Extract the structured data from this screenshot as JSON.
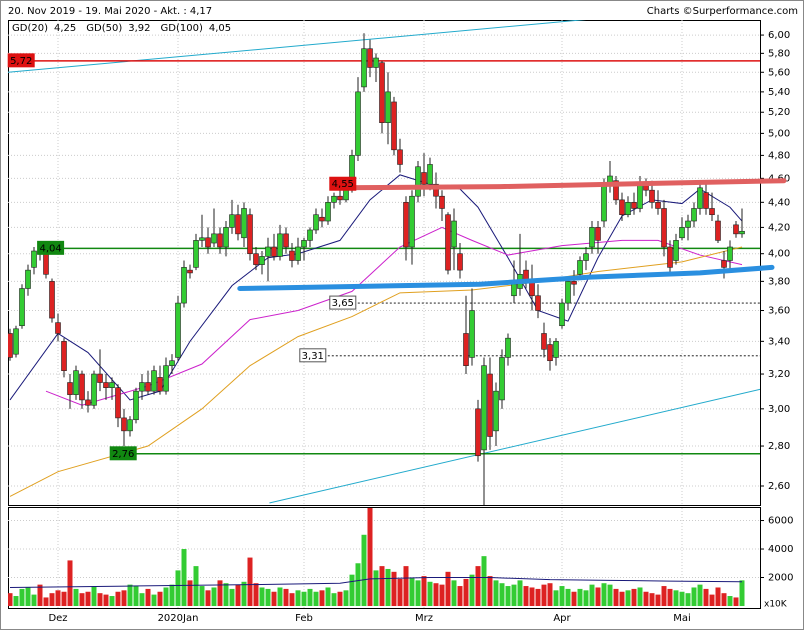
{
  "chart_data": {
    "type": "candlestick",
    "title": "20. Nov 2019 - 19. Mai 2020 - Akt. : 4,17",
    "source": "Charts ©Surperformance.com",
    "log": true,
    "grid": true,
    "up_color": "#33cc33",
    "down_color": "#dd2222",
    "categories": [
      null,
      null,
      null,
      null,
      null,
      null,
      null,
      null,
      "Dez",
      null,
      null,
      null,
      null,
      null,
      null,
      null,
      null,
      null,
      null,
      null,
      null,
      null,
      null,
      null,
      null,
      null,
      null,
      null,
      "2020Jan",
      null,
      null,
      null,
      null,
      null,
      null,
      null,
      null,
      null,
      null,
      null,
      null,
      null,
      null,
      null,
      null,
      null,
      null,
      null,
      null,
      "Feb",
      null,
      null,
      null,
      null,
      null,
      null,
      null,
      null,
      null,
      null,
      null,
      null,
      null,
      null,
      null,
      null,
      null,
      null,
      null,
      "Mrz",
      null,
      null,
      null,
      null,
      null,
      null,
      null,
      null,
      null,
      null,
      null,
      null,
      null,
      null,
      null,
      null,
      null,
      null,
      null,
      null,
      null,
      null,
      "Apr",
      null,
      null,
      null,
      null,
      null,
      null,
      null,
      null,
      null,
      null,
      null,
      null,
      null,
      null,
      null,
      null,
      null,
      null,
      null,
      "Mai",
      null,
      null,
      null,
      null,
      null,
      null,
      null,
      null,
      null,
      null,
      null
    ],
    "candles": [
      [
        3.45,
        3.48,
        3.28,
        3.3
      ],
      [
        3.32,
        3.5,
        3.3,
        3.48
      ],
      [
        3.5,
        3.78,
        3.48,
        3.75
      ],
      [
        3.75,
        3.92,
        3.7,
        3.88
      ],
      [
        3.9,
        4.05,
        3.85,
        4.02
      ],
      [
        4.02,
        4.06,
        3.95,
        4.0
      ],
      [
        4.0,
        4.02,
        3.82,
        3.85
      ],
      [
        3.8,
        3.82,
        3.52,
        3.55
      ],
      [
        3.52,
        3.58,
        3.4,
        3.45
      ],
      [
        3.4,
        3.42,
        3.18,
        3.22
      ],
      [
        3.15,
        3.2,
        3.0,
        3.08
      ],
      [
        3.08,
        3.25,
        3.05,
        3.22
      ],
      [
        3.2,
        3.22,
        3.0,
        3.05
      ],
      [
        3.05,
        3.1,
        2.98,
        3.02
      ],
      [
        3.02,
        3.22,
        3.0,
        3.2
      ],
      [
        3.2,
        3.35,
        3.1,
        3.15
      ],
      [
        3.15,
        3.2,
        3.05,
        3.12
      ],
      [
        3.12,
        3.18,
        3.05,
        3.15
      ],
      [
        3.12,
        3.14,
        2.9,
        2.95
      ],
      [
        2.95,
        3.0,
        2.8,
        2.88
      ],
      [
        2.88,
        2.96,
        2.85,
        2.94
      ],
      [
        2.94,
        3.12,
        2.92,
        3.1
      ],
      [
        3.1,
        3.2,
        3.05,
        3.15
      ],
      [
        3.15,
        3.22,
        3.08,
        3.1
      ],
      [
        3.1,
        3.25,
        3.08,
        3.22
      ],
      [
        3.18,
        3.25,
        3.08,
        3.1
      ],
      [
        3.1,
        3.3,
        3.08,
        3.25
      ],
      [
        3.25,
        3.32,
        3.2,
        3.28
      ],
      [
        3.3,
        3.7,
        3.28,
        3.65
      ],
      [
        3.65,
        3.95,
        3.62,
        3.9
      ],
      [
        3.88,
        3.92,
        3.82,
        3.86
      ],
      [
        3.9,
        4.15,
        3.88,
        4.1
      ],
      [
        4.1,
        4.3,
        4.05,
        4.12
      ],
      [
        4.12,
        4.2,
        4.0,
        4.05
      ],
      [
        4.08,
        4.35,
        4.05,
        4.15
      ],
      [
        4.15,
        4.2,
        4.0,
        4.05
      ],
      [
        4.05,
        4.25,
        3.98,
        4.2
      ],
      [
        4.2,
        4.42,
        4.15,
        4.3
      ],
      [
        4.3,
        4.38,
        4.1,
        4.15
      ],
      [
        4.12,
        4.4,
        4.05,
        4.35
      ],
      [
        4.3,
        4.35,
        3.95,
        4.0
      ],
      [
        4.0,
        4.05,
        3.88,
        3.92
      ],
      [
        3.92,
        4.02,
        3.85,
        3.98
      ],
      [
        3.98,
        4.12,
        3.8,
        4.05
      ],
      [
        4.05,
        4.15,
        3.95,
        3.98
      ],
      [
        3.98,
        4.22,
        3.95,
        4.15
      ],
      [
        4.15,
        4.2,
        4.0,
        4.05
      ],
      [
        4.02,
        4.08,
        3.9,
        3.95
      ],
      [
        3.95,
        4.12,
        3.92,
        4.05
      ],
      [
        4.05,
        4.12,
        3.95,
        4.1
      ],
      [
        4.1,
        4.2,
        4.05,
        4.18
      ],
      [
        4.18,
        4.35,
        4.15,
        4.3
      ],
      [
        4.28,
        4.35,
        4.2,
        4.25
      ],
      [
        4.25,
        4.45,
        4.22,
        4.4
      ],
      [
        4.4,
        4.48,
        4.35,
        4.45
      ],
      [
        4.45,
        4.55,
        4.38,
        4.42
      ],
      [
        4.42,
        4.58,
        4.4,
        4.5
      ],
      [
        4.5,
        4.85,
        4.48,
        4.8
      ],
      [
        4.8,
        5.55,
        4.75,
        5.4
      ],
      [
        5.45,
        6.02,
        5.4,
        5.85
      ],
      [
        5.85,
        5.95,
        5.55,
        5.65
      ],
      [
        5.65,
        5.8,
        5.5,
        5.75
      ],
      [
        5.7,
        5.72,
        5.0,
        5.1
      ],
      [
        5.1,
        5.6,
        4.9,
        5.4
      ],
      [
        5.3,
        5.35,
        4.8,
        4.85
      ],
      [
        4.85,
        4.95,
        4.65,
        4.72
      ],
      [
        4.4,
        4.45,
        3.95,
        4.05
      ],
      [
        4.05,
        4.5,
        3.92,
        4.45
      ],
      [
        4.45,
        4.75,
        4.4,
        4.7
      ],
      [
        4.65,
        4.82,
        4.45,
        4.55
      ],
      [
        4.55,
        4.78,
        4.5,
        4.72
      ],
      [
        4.55,
        4.65,
        4.35,
        4.45
      ],
      [
        4.45,
        4.5,
        4.25,
        4.35
      ],
      [
        4.3,
        4.32,
        3.85,
        3.88
      ],
      [
        4.05,
        4.35,
        3.88,
        4.25
      ],
      [
        4.0,
        4.08,
        3.82,
        3.88
      ],
      [
        3.45,
        3.7,
        3.2,
        3.25
      ],
      [
        3.3,
        3.75,
        3.25,
        3.6
      ],
      [
        3.0,
        3.05,
        2.72,
        2.75
      ],
      [
        2.78,
        3.3,
        2.5,
        3.25
      ],
      [
        3.2,
        3.3,
        2.78,
        2.85
      ],
      [
        2.88,
        3.15,
        2.8,
        3.1
      ],
      [
        3.05,
        3.35,
        3.0,
        3.3
      ],
      [
        3.3,
        3.45,
        3.25,
        3.42
      ],
      [
        3.7,
        3.95,
        3.65,
        3.78
      ],
      [
        3.75,
        4.15,
        3.7,
        3.85
      ],
      [
        3.88,
        3.95,
        3.75,
        3.8
      ],
      [
        3.8,
        3.92,
        3.6,
        3.7
      ],
      [
        3.7,
        3.78,
        3.55,
        3.6
      ],
      [
        3.45,
        3.52,
        3.3,
        3.35
      ],
      [
        3.38,
        3.42,
        3.22,
        3.28
      ],
      [
        3.3,
        3.42,
        3.25,
        3.4
      ],
      [
        3.5,
        3.68,
        3.48,
        3.65
      ],
      [
        3.65,
        3.82,
        3.6,
        3.8
      ],
      [
        3.8,
        3.88,
        3.7,
        3.78
      ],
      [
        3.85,
        3.98,
        3.82,
        3.95
      ],
      [
        3.95,
        4.05,
        3.88,
        4.0
      ],
      [
        4.05,
        4.25,
        4.0,
        4.2
      ],
      [
        4.2,
        4.25,
        4.0,
        4.1
      ],
      [
        4.25,
        4.6,
        4.2,
        4.55
      ],
      [
        4.55,
        4.75,
        4.48,
        4.62
      ],
      [
        4.58,
        4.62,
        4.38,
        4.42
      ],
      [
        4.42,
        4.48,
        4.25,
        4.3
      ],
      [
        4.3,
        4.45,
        4.28,
        4.4
      ],
      [
        4.4,
        4.48,
        4.3,
        4.35
      ],
      [
        4.35,
        4.62,
        4.32,
        4.55
      ],
      [
        4.55,
        4.6,
        4.45,
        4.5
      ],
      [
        4.5,
        4.58,
        4.35,
        4.4
      ],
      [
        4.4,
        4.5,
        4.3,
        4.35
      ],
      [
        4.35,
        4.42,
        3.98,
        4.05
      ],
      [
        4.05,
        4.1,
        3.85,
        3.9
      ],
      [
        3.95,
        4.15,
        3.92,
        4.1
      ],
      [
        4.12,
        4.28,
        4.1,
        4.2
      ],
      [
        4.2,
        4.3,
        4.1,
        4.25
      ],
      [
        4.25,
        4.4,
        4.2,
        4.35
      ],
      [
        4.35,
        4.58,
        4.3,
        4.52
      ],
      [
        4.48,
        4.55,
        4.3,
        4.35
      ],
      [
        4.35,
        4.48,
        4.25,
        4.3
      ],
      [
        4.25,
        4.3,
        4.08,
        4.1
      ],
      [
        3.95,
        4.02,
        3.82,
        3.9
      ],
      [
        3.95,
        4.1,
        3.88,
        4.05
      ],
      [
        4.22,
        4.25,
        4.12,
        4.15
      ],
      [
        4.15,
        4.35,
        4.12,
        4.17
      ]
    ],
    "ylim": [
      2.51,
      6.17
    ],
    "yticks": [
      {
        "value": 2.6,
        "label": "2,60"
      },
      {
        "value": 2.8,
        "label": "2,80"
      },
      {
        "value": 3.0,
        "label": "3,00"
      },
      {
        "value": 3.2,
        "label": "3,20"
      },
      {
        "value": 3.4,
        "label": "3,40"
      },
      {
        "value": 3.6,
        "label": "3,60"
      },
      {
        "value": 3.8,
        "label": "3,80"
      },
      {
        "value": 4.0,
        "label": "4,00"
      },
      {
        "value": 4.2,
        "label": "4,20"
      },
      {
        "value": 4.4,
        "label": "4,40"
      },
      {
        "value": 4.6,
        "label": "4,60"
      },
      {
        "value": 4.8,
        "label": "4,80"
      },
      {
        "value": 5.0,
        "label": "5,00"
      },
      {
        "value": 5.2,
        "label": "5,20"
      },
      {
        "value": 5.4,
        "label": "5,40"
      },
      {
        "value": 5.6,
        "label": "5,60"
      },
      {
        "value": 5.8,
        "label": "5,80"
      },
      {
        "value": 6.0,
        "label": "6,00"
      }
    ],
    "averages": [
      {
        "name": "GD(20)",
        "color": "#1a1a7a",
        "current": {
          "value": 4.25,
          "label": "4,25"
        },
        "x": [
          0,
          8,
          13,
          20,
          25,
          30,
          37,
          43,
          48,
          55,
          60,
          65,
          70,
          75,
          78,
          83,
          88,
          93,
          98,
          102,
          107,
          112,
          115,
          120,
          122
        ],
        "values": [
          3.05,
          3.45,
          3.33,
          3.05,
          3.1,
          3.4,
          3.77,
          3.97,
          4.0,
          4.1,
          4.42,
          4.63,
          4.55,
          4.51,
          4.36,
          3.97,
          3.6,
          3.53,
          3.97,
          4.29,
          4.42,
          4.39,
          4.51,
          4.36,
          4.25
        ]
      },
      {
        "name": "GD(50)",
        "color": "#cc22cc",
        "current": {
          "value": 3.92,
          "label": "3,92"
        },
        "x": [
          6,
          12,
          23,
          32,
          40,
          48,
          57,
          65,
          72,
          77,
          83,
          92,
          102,
          108,
          115,
          122
        ],
        "values": [
          3.1,
          3.02,
          3.13,
          3.26,
          3.54,
          3.6,
          3.73,
          4.05,
          4.2,
          4.1,
          3.99,
          4.06,
          4.1,
          4.1,
          3.99,
          3.92
        ]
      },
      {
        "name": "GD(100)",
        "color": "#e0a020",
        "current": {
          "value": 4.05,
          "label": "4,05"
        },
        "x": [
          0,
          8,
          23,
          32,
          40,
          48,
          57,
          65,
          77,
          85,
          98,
          112,
          122
        ],
        "values": [
          2.55,
          2.67,
          2.8,
          3.0,
          3.25,
          3.43,
          3.56,
          3.72,
          3.74,
          3.78,
          3.87,
          3.94,
          4.05
        ]
      }
    ],
    "levels": [
      {
        "value": 5.72,
        "label": "5,72",
        "color": "#dd1111",
        "start": -0.3,
        "line": true
      },
      {
        "value": 4.04,
        "label": "4,04",
        "color": "#118811",
        "start": 4.6,
        "line": true
      },
      {
        "value": 2.76,
        "label": "2,76",
        "color": "#118811",
        "start": 16.7,
        "line": true
      },
      {
        "value": 3.65,
        "label": "3,65",
        "color": "#000000",
        "start": 53.3,
        "line": true,
        "dashed": true
      },
      {
        "value": 3.31,
        "label": "3,31",
        "color": "#000000",
        "start": 48.3,
        "line": true,
        "dashed": true
      },
      {
        "value": 4.55,
        "label": "4,55",
        "color": "#dd1111",
        "start": 53.3,
        "line": false
      }
    ],
    "trendlines": [
      {
        "color": "#22aacc",
        "points": [
          [
            -0.3,
            5.6
          ],
          [
            96.7,
            6.18
          ]
        ]
      },
      {
        "color": "#22aacc",
        "points": [
          [
            43.3,
            2.52
          ],
          [
            125,
            3.11
          ]
        ]
      }
    ],
    "drawn_lines": [
      {
        "color": "#2a8fe0",
        "points": [
          [
            38.3,
            3.75
          ],
          [
            78.3,
            3.78
          ],
          [
            96.7,
            3.83
          ],
          [
            115,
            3.86
          ],
          [
            127,
            3.9
          ]
        ]
      },
      {
        "color": "#e06060",
        "points": [
          [
            54.2,
            4.52
          ],
          [
            81.7,
            4.53
          ],
          [
            129,
            4.58
          ]
        ]
      }
    ],
    "volume": {
      "values": [
        900,
        700,
        1200,
        1300,
        800,
        1500,
        600,
        900,
        1100,
        1000,
        3200,
        1200,
        900,
        1000,
        1400,
        900,
        800,
        700,
        1000,
        1100,
        1500,
        1400,
        900,
        1200,
        800,
        1000,
        1300,
        1500,
        2500,
        4000,
        1800,
        2800,
        1400,
        1100,
        1300,
        1800,
        1600,
        1200,
        1500,
        1700,
        3400,
        1600,
        1300,
        1200,
        1000,
        1300,
        1200,
        900,
        1100,
        1000,
        1200,
        1000,
        1100,
        1300,
        900,
        1000,
        1100,
        2200,
        3000,
        5000,
        7000,
        2500,
        2800,
        2600,
        2400,
        1900,
        2800,
        2000,
        1800,
        2100,
        1700,
        1600,
        1500,
        2400,
        1800,
        1400,
        1900,
        2200,
        2800,
        3500,
        2100,
        1800,
        1600,
        1400,
        1500,
        1800,
        1400,
        1300,
        1200,
        1500,
        1600,
        1100,
        1400,
        1200,
        1000,
        1200,
        1100,
        1500,
        1300,
        1600,
        1500,
        1200,
        1000,
        1100,
        1200,
        1300,
        1000,
        900,
        800,
        1400,
        1200,
        1100,
        1000,
        900,
        1300,
        1500,
        1200,
        800,
        1300,
        900,
        700,
        600,
        1800
      ],
      "ylim": [
        0,
        6880
      ],
      "yticks": [
        2000,
        4000,
        6000
      ],
      "unit_label": "x10K",
      "average": {
        "color": "#1a1a7a",
        "x": [
          0,
          20,
          40,
          55,
          60,
          70,
          80,
          90,
          100,
          110,
          122
        ],
        "values": [
          1300,
          1400,
          1500,
          1600,
          1900,
          2000,
          2000,
          1850,
          1800,
          1750,
          1700
        ]
      }
    }
  }
}
